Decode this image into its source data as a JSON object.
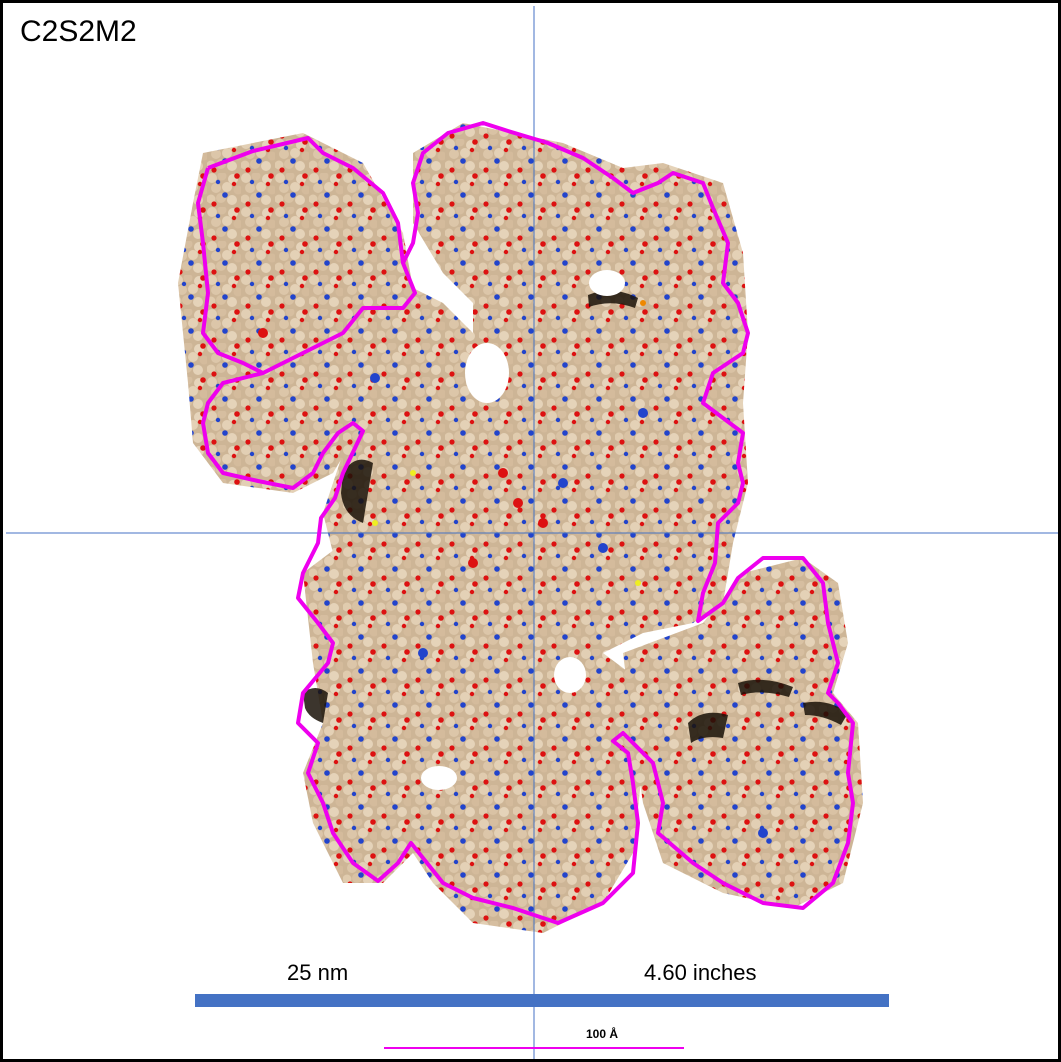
{
  "figure": {
    "label": "C2S2M2",
    "left_scale_label": "25 nm",
    "right_scale_label": "4.60 inches",
    "small_scale_label": "100 Å"
  },
  "colors": {
    "frame": "#000000",
    "crosshair": "#4472c4",
    "outline": "#ee00ee",
    "scalebar": "#4472c4",
    "small_scalebar": "#ee00ee",
    "atom_carbon": "#d8c0a0",
    "atom_oxygen": "#dd1111",
    "atom_nitrogen": "#2244cc",
    "atom_sulfur": "#eeee22",
    "shadow": "#1a1208"
  },
  "molecule": {
    "name": "protein-complex-spacefill"
  }
}
